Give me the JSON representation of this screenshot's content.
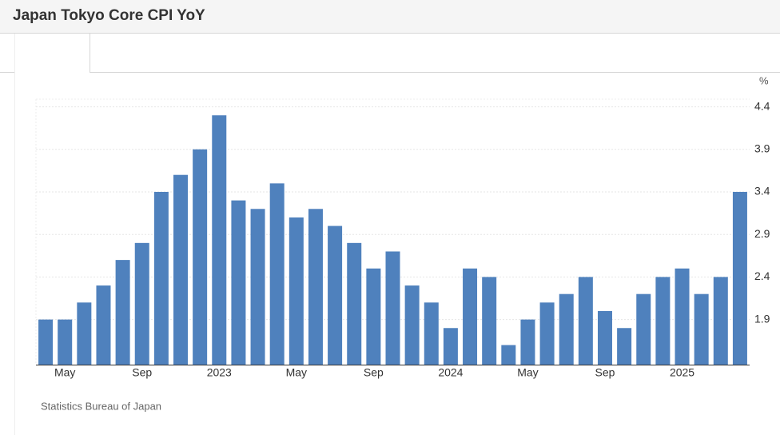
{
  "chart_data": {
    "type": "bar",
    "title": "Japan Tokyo Core CPI YoY",
    "y_unit": "%",
    "source": "Statistics Bureau of Japan",
    "categories": [
      null,
      "May",
      null,
      null,
      null,
      "Sep",
      null,
      null,
      null,
      "2023",
      null,
      null,
      null,
      "May",
      null,
      null,
      null,
      "Sep",
      null,
      null,
      null,
      "2024",
      null,
      null,
      null,
      "May",
      null,
      null,
      null,
      "Sep",
      null,
      null,
      null,
      "2025",
      null,
      null,
      null
    ],
    "values": [
      1.9,
      1.9,
      2.1,
      2.3,
      2.6,
      2.8,
      3.4,
      3.6,
      3.9,
      4.3,
      3.3,
      3.2,
      3.5,
      3.1,
      3.2,
      3.0,
      2.8,
      2.5,
      2.7,
      2.3,
      2.1,
      1.8,
      2.5,
      2.4,
      1.6,
      1.9,
      2.1,
      2.2,
      2.4,
      2.0,
      1.8,
      2.2,
      2.4,
      2.5,
      2.2,
      2.4,
      3.4
    ],
    "color": "#4f81bd",
    "ylim": [
      1.37,
      4.49
    ],
    "yticks": [
      1.9,
      2.4,
      2.9,
      3.4,
      3.9,
      4.4
    ],
    "grid": true
  }
}
